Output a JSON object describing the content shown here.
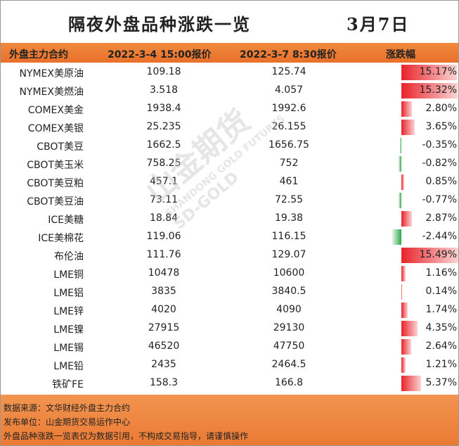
{
  "header": {
    "title": "隔夜外盘品种涨跌一览",
    "date": "3月7日"
  },
  "table": {
    "columns": [
      "外盘主力合约",
      "2022-3-4 15:00报价",
      "2022-3-7 8:30报价",
      "涨跌幅"
    ],
    "rows": [
      {
        "name": "NYMEX美原油",
        "prev": "109.18",
        "curr": "125.74",
        "change": {
          "value": 15.17,
          "label": "15.17%"
        }
      },
      {
        "name": "NYMEX美燃油",
        "prev": "3.518",
        "curr": "4.057",
        "change": {
          "value": 15.32,
          "label": "15.32%"
        }
      },
      {
        "name": "COMEX美金",
        "prev": "1938.4",
        "curr": "1992.6",
        "change": {
          "value": 2.8,
          "label": "2.80%"
        }
      },
      {
        "name": "COMEX美银",
        "prev": "25.235",
        "curr": "26.155",
        "change": {
          "value": 3.65,
          "label": "3.65%"
        }
      },
      {
        "name": "CBOT美豆",
        "prev": "1662.5",
        "curr": "1656.75",
        "change": {
          "value": -0.35,
          "label": "-0.35%"
        }
      },
      {
        "name": "CBOT美玉米",
        "prev": "758.25",
        "curr": "752",
        "change": {
          "value": -0.82,
          "label": "-0.82%"
        }
      },
      {
        "name": "CBOT美豆粕",
        "prev": "457.1",
        "curr": "461",
        "change": {
          "value": 0.85,
          "label": "0.85%"
        }
      },
      {
        "name": "CBOT美豆油",
        "prev": "73.11",
        "curr": "72.55",
        "change": {
          "value": -0.77,
          "label": "-0.77%"
        }
      },
      {
        "name": "ICE美糖",
        "prev": "18.84",
        "curr": "19.38",
        "change": {
          "value": 2.87,
          "label": "2.87%"
        }
      },
      {
        "name": "ICE美棉花",
        "prev": "119.06",
        "curr": "116.15",
        "change": {
          "value": -2.44,
          "label": "-2.44%"
        }
      },
      {
        "name": "布伦油",
        "prev": "111.76",
        "curr": "129.07",
        "change": {
          "value": 15.49,
          "label": "15.49%"
        }
      },
      {
        "name": "LME铜",
        "prev": "10478",
        "curr": "10600",
        "change": {
          "value": 1.16,
          "label": "1.16%"
        }
      },
      {
        "name": "LME铝",
        "prev": "3835",
        "curr": "3840.5",
        "change": {
          "value": 0.14,
          "label": "0.14%"
        }
      },
      {
        "name": "LME锌",
        "prev": "4020",
        "curr": "4090",
        "change": {
          "value": 1.74,
          "label": "1.74%"
        }
      },
      {
        "name": "LME镍",
        "prev": "27915",
        "curr": "29130",
        "change": {
          "value": 4.35,
          "label": "4.35%"
        }
      },
      {
        "name": "LME锡",
        "prev": "46520",
        "curr": "47750",
        "change": {
          "value": 2.64,
          "label": "2.64%"
        }
      },
      {
        "name": "LME铅",
        "prev": "2435",
        "curr": "2464.5",
        "change": {
          "value": 1.21,
          "label": "1.21%"
        }
      },
      {
        "name": "铁矿FE",
        "prev": "158.3",
        "curr": "166.8",
        "change": {
          "value": 5.37,
          "label": "5.37%"
        }
      }
    ]
  },
  "footer": {
    "lines": [
      "数据来源：文华财经外盘主力合约",
      "发布单位：山金期货交易运作中心",
      "外盘品种涨跌一览表仅为数据引用，不构成交易指导，请谨慎操作"
    ]
  },
  "watermark": {
    "brand": "山金期货",
    "english": "SHANDONG GOLD FUTURES",
    "logo": "SD-GOLD"
  }
}
